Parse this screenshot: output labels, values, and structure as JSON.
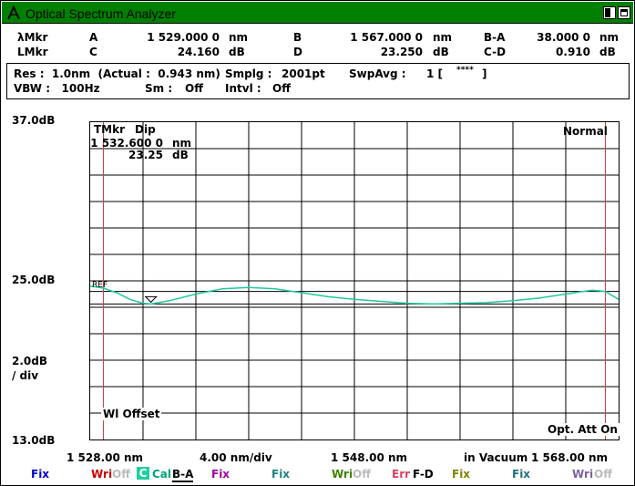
{
  "window": {
    "title": "Optical Spectrum Analyzer"
  },
  "markers": {
    "row1": {
      "label": "λMkr",
      "a_label": "A",
      "a_value": "1 529.000 0",
      "a_unit": "nm",
      "b_label": "B",
      "b_value": "1 567.000 0",
      "b_unit": "nm",
      "diff_label": "B-A",
      "diff_value": "38.000 0",
      "diff_unit": "nm"
    },
    "row2": {
      "label": "LMkr",
      "c_label": "C",
      "c_value": "24.160",
      "c_unit": "dB",
      "d_label": "D",
      "d_value": "23.250",
      "d_unit": "dB",
      "diff_label": "C-D",
      "diff_value": "0.910",
      "diff_unit": "dB"
    }
  },
  "settings": {
    "res": "Res :  1.0nm  (Actual :  0.943 nm)",
    "smplg_label": "Smplg :",
    "smplg_value": "2001pt",
    "swpavg_label": "SwpAvg :",
    "swpavg_value": "1 [",
    "swpavg_stars": "****",
    "swpavg_close": "]",
    "vbw": "VBW :   100Hz",
    "sm_label": "Sm :",
    "sm_value": "Off",
    "intvl_label": "Intvl :",
    "intvl_value": "Off"
  },
  "scale": {
    "top": "37.0dB",
    "ref": "25.0dB",
    "div": "2.0dB",
    "div_unit": "/ div",
    "bottom": "13.0dB"
  },
  "plot": {
    "tmkr_label": "TMkr",
    "tmkr_mode": "Dip",
    "tmkr_wavelength": "1 532.600 0",
    "tmkr_wavelength_unit": "nm",
    "tmkr_level": "23.25",
    "tmkr_level_unit": "dB",
    "mode": "Normal",
    "ref_label": "REF",
    "wl_offset": "Wl Offset",
    "att": "Opt. Att On"
  },
  "xaxis": {
    "start": "1 528.00 nm",
    "span_div": "4.00 nm/div",
    "center": "1 548.00 nm",
    "medium": "in Vacuum",
    "stop": "1 568.00 nm"
  },
  "chart_data": {
    "type": "line",
    "x_unit": "nm",
    "y_unit": "dB",
    "xlim": [
      1528,
      1568
    ],
    "ylim": [
      13,
      37
    ],
    "series": [
      {
        "color": "#20c8a0",
        "x": [
          1528,
          1529,
          1530,
          1531,
          1532,
          1532.6,
          1534,
          1536,
          1538,
          1540,
          1542,
          1544,
          1546,
          1548,
          1550,
          1552,
          1554,
          1556,
          1558,
          1560,
          1562,
          1564,
          1566,
          1567,
          1567.5,
          1568
        ],
        "y": [
          24.6,
          24.45,
          24.1,
          23.6,
          23.3,
          23.25,
          23.5,
          24.0,
          24.4,
          24.5,
          24.4,
          24.1,
          23.8,
          23.6,
          23.45,
          23.3,
          23.25,
          23.3,
          23.35,
          23.5,
          23.7,
          24.0,
          24.3,
          24.2,
          23.9,
          23.6
        ]
      }
    ],
    "reference_level": 25.0,
    "ref_band": [
      24.2,
      23.25
    ],
    "markers_x": [
      1529,
      1567
    ],
    "tmkr_x": 1532.6
  },
  "traces": [
    {
      "name": "Fix",
      "color": "#0000cc"
    },
    {
      "name": "Wri",
      "state": "Off",
      "color": "#cc0000"
    },
    {
      "name": "C",
      "state": "Cal",
      "extra": "B-A",
      "color": "#00a080"
    },
    {
      "name": "Fix",
      "color": "#a000a0"
    },
    {
      "name": "Fix",
      "color": "#208080"
    },
    {
      "name": "Wri",
      "state": "Off",
      "color": "#408000"
    },
    {
      "name": "Err",
      "extra": "F-D",
      "color": "#e04060"
    },
    {
      "name": "Fix",
      "color": "#808000"
    },
    {
      "name": "Fix",
      "color": "#207080"
    },
    {
      "name": "Wri",
      "state": "Off",
      "color": "#8060a0"
    }
  ]
}
